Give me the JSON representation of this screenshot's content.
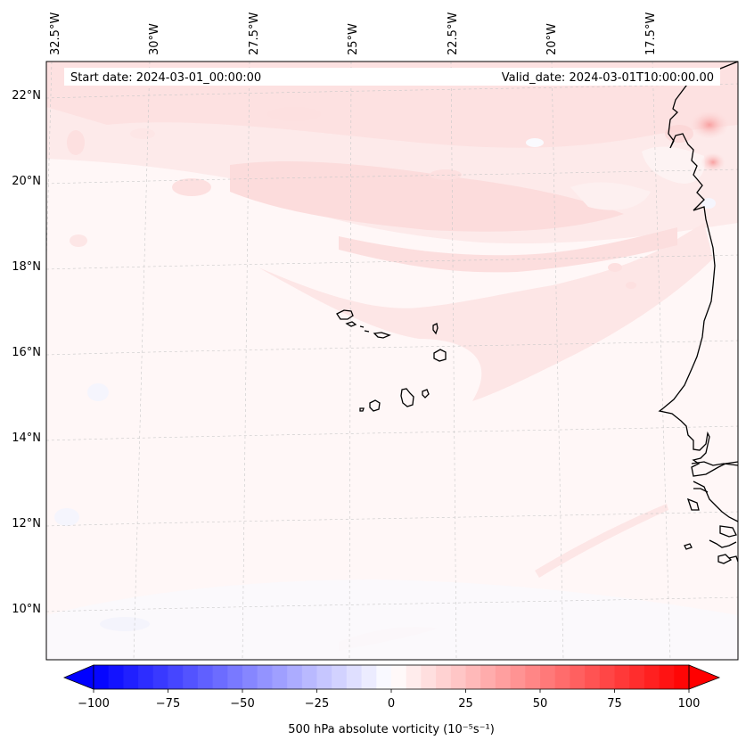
{
  "header": {
    "start_date": "Start date: 2024-03-01_00:00:00",
    "valid_date": "Valid_date: 2024-03-01T10:00:00.00"
  },
  "map": {
    "longitude_labels": [
      "32.5°W",
      "30°W",
      "27.5°W",
      "25°W",
      "22.5°W",
      "20°W",
      "17.5°W"
    ],
    "latitude_labels": [
      "22°N",
      "20°N",
      "18°N",
      "16°N",
      "14°N",
      "12°N",
      "10°N"
    ],
    "features": [
      "cape-verde-islands",
      "west-african-coastline",
      "vorticity-field"
    ]
  },
  "colorbar": {
    "tick_labels": [
      "−100",
      "−75",
      "−50",
      "−25",
      "0",
      "25",
      "50",
      "75",
      "100"
    ],
    "label": "500 hPa absolute vorticity (10⁻⁵s⁻¹)",
    "low_color": "#0000ff",
    "mid_color": "#ffffff",
    "high_color": "#ff0000"
  }
}
